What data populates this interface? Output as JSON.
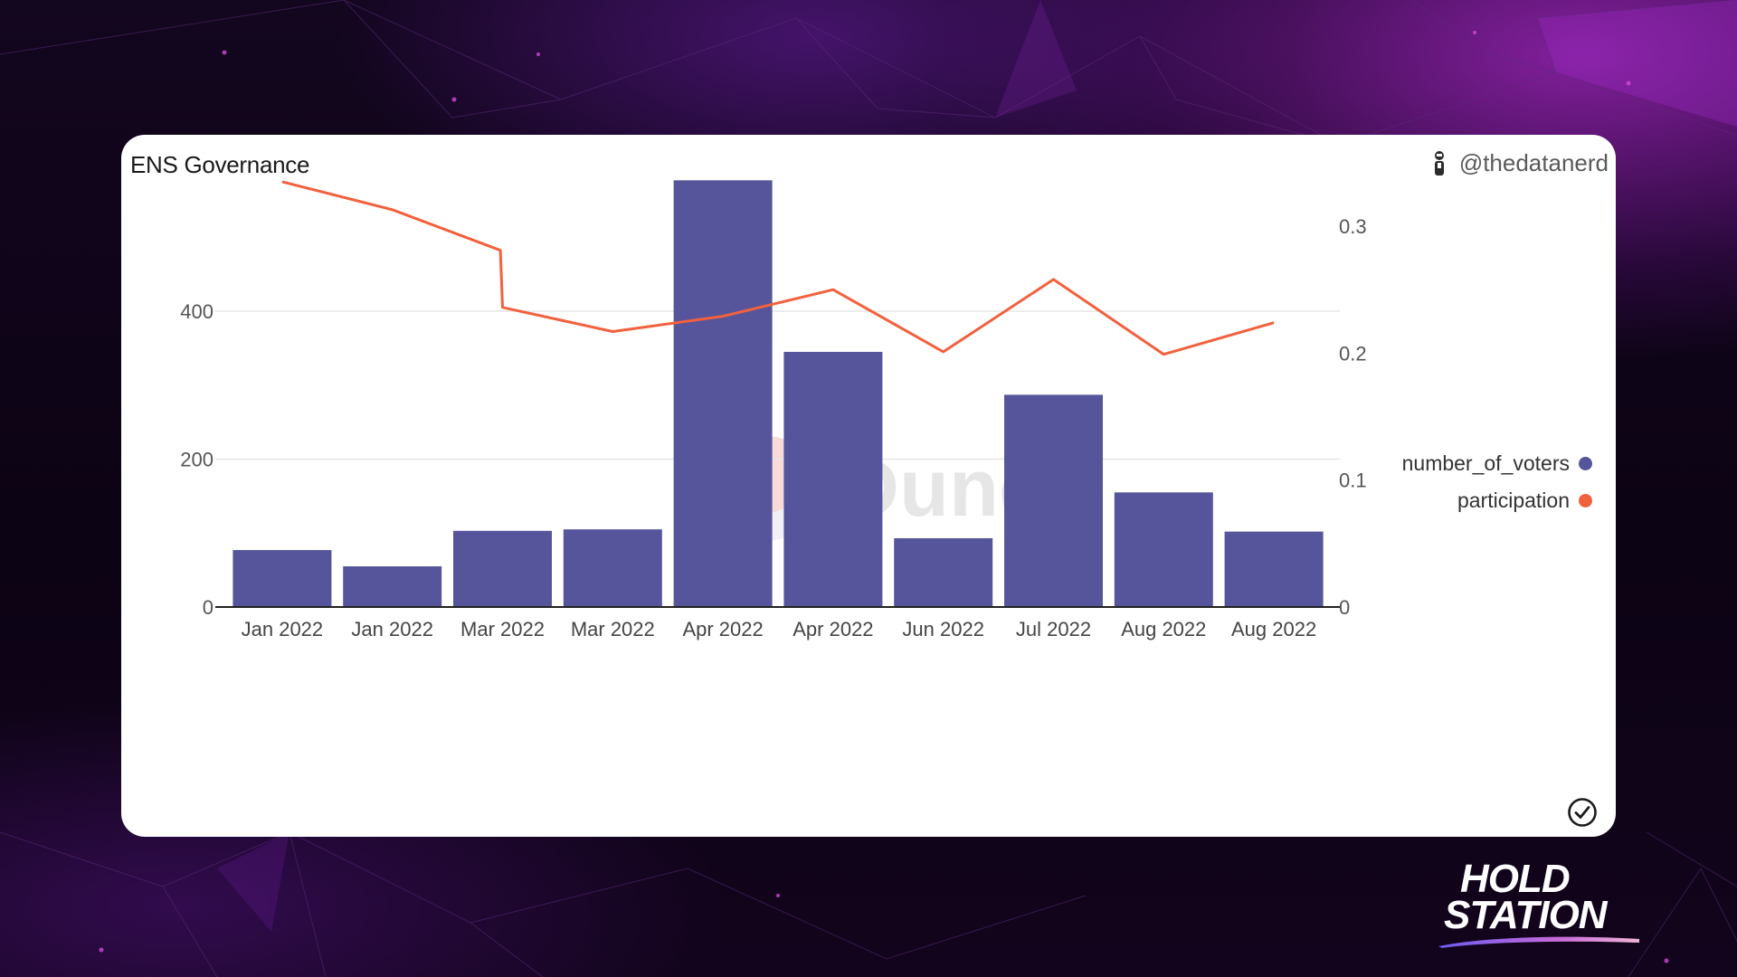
{
  "card": {
    "title": "ENS Governance",
    "author": "@thedatanerd",
    "watermark": "Dune"
  },
  "legend": {
    "items": [
      {
        "label": "number_of_voters",
        "color": "#56559b"
      },
      {
        "label": "participation",
        "color": "#f2613d"
      }
    ]
  },
  "brand": {
    "line1": "HOLD",
    "line2": "STATION"
  },
  "chart_data": {
    "type": "bar",
    "categories": [
      "Jan 2022",
      "Jan 2022",
      "Mar 2022",
      "Mar 2022",
      "Apr 2022",
      "Apr 2022",
      "Jun 2022",
      "Jul 2022",
      "Aug 2022",
      "Aug 2022"
    ],
    "series": [
      {
        "name": "number_of_voters",
        "type": "bar",
        "axis": "left",
        "color": "#56559b",
        "values": [
          77,
          55,
          103,
          105,
          577,
          345,
          93,
          287,
          155,
          102
        ]
      },
      {
        "name": "participation",
        "type": "line",
        "axis": "right",
        "color": "#f2613d",
        "x": [
          0,
          1,
          1.98,
          2,
          3,
          4,
          5,
          6,
          7,
          8,
          9
        ],
        "values": [
          0.335,
          0.313,
          0.281,
          0.236,
          0.217,
          0.229,
          0.25,
          0.201,
          0.258,
          0.199,
          0.224
        ]
      }
    ],
    "y_left": {
      "ticks": [
        "0",
        "200",
        "400"
      ],
      "ylim": [
        0,
        600
      ]
    },
    "y_right": {
      "ticks": [
        "0",
        "0.1",
        "0.2",
        "0.3"
      ],
      "ylim": [
        0,
        0.36
      ]
    },
    "grid": true,
    "legend_position": "right"
  }
}
